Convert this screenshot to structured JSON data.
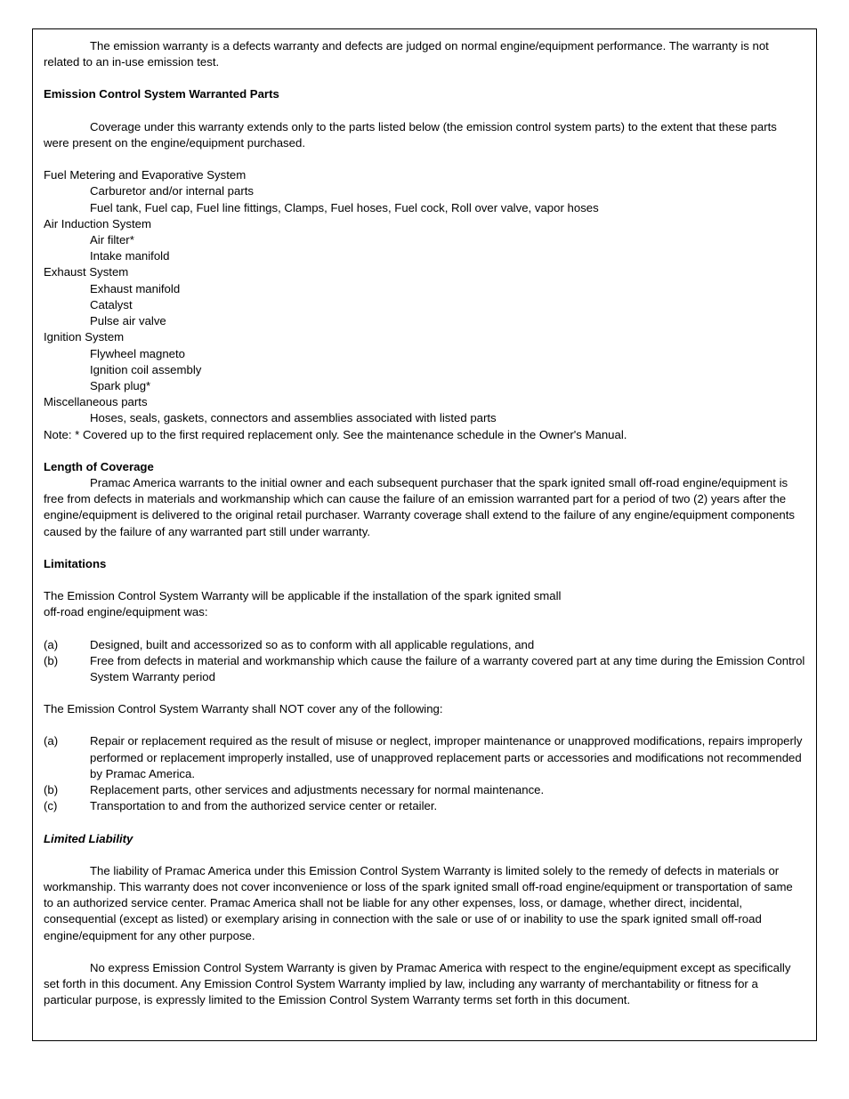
{
  "intro": "The emission warranty is a defects warranty and defects are judged on normal engine/equipment performance. The warranty is not related to an in-use emission test.",
  "parts": {
    "heading": "Emission Control System Warranted Parts",
    "intro": "Coverage under this warranty extends only to the parts listed below (the emission control system parts) to the extent that these parts were present on the engine/equipment purchased.",
    "g1_title": "Fuel Metering and Evaporative System",
    "g1_i1": "Carburetor and/or internal parts",
    "g1_i2": "Fuel tank, Fuel cap, Fuel line fittings, Clamps, Fuel hoses, Fuel cock, Roll over valve, vapor hoses",
    "g2_title": "Air Induction System",
    "g2_i1": "Air filter*",
    "g2_i2": "Intake manifold",
    "g3_title": "Exhaust System",
    "g3_i1": "Exhaust manifold",
    "g3_i2": "Catalyst",
    "g3_i3": "Pulse air valve",
    "g4_title": "Ignition System",
    "g4_i1": "Flywheel magneto",
    "g4_i2": "Ignition coil assembly",
    "g4_i3": "Spark plug*",
    "g5_title": "Miscellaneous parts",
    "g5_i1": "Hoses, seals, gaskets, connectors and assemblies associated with listed parts",
    "note": "Note: * Covered up to the first required replacement only. See the maintenance schedule in the Owner's Manual."
  },
  "coverage": {
    "heading": "Length of Coverage",
    "body": "Pramac America warrants to the initial owner and each subsequent purchaser that the spark ignited small off-road engine/equipment is free from defects in materials and workmanship which can cause the failure of an emission warranted part for a period of two (2) years after the engine/equipment is delivered to the original retail purchaser. Warranty coverage shall extend to the failure of any engine/equipment components caused by the failure of any warranted part still under warranty."
  },
  "limitations": {
    "heading": "Limitations",
    "intro1": "The Emission Control System Warranty will be applicable if the installation of the spark ignited small",
    "intro2": "off-road engine/equipment was:",
    "a1_m": "(a)",
    "a1": "Designed, built and accessorized so as to conform with all applicable regulations, and",
    "b1_m": "(b)",
    "b1": "Free from defects in material and workmanship which cause the failure of a warranty covered part at any time during the Emission Control System Warranty period",
    "mid": "The Emission Control System Warranty shall NOT cover any of the following:",
    "a2_m": "(a)",
    "a2": "Repair or replacement required as the result of misuse or neglect, improper maintenance or unapproved modifications, repairs improperly performed or replacement improperly installed, use of unapproved replacement parts or accessories and modifications not recommended by Pramac America.",
    "b2_m": "(b)",
    "b2": "Replacement parts, other services and adjustments necessary for normal maintenance.",
    "c2_m": "(c)",
    "c2": "Transportation to and from the authorized service center or retailer."
  },
  "liability": {
    "heading": "Limited Liability",
    "p1": "The liability of Pramac America under this Emission Control System Warranty is limited solely to the remedy of defects in materials or workmanship. This warranty does not cover inconvenience or loss of the spark ignited small off-road engine/equipment or transportation of same to an authorized service center. Pramac America shall not be liable for any other expenses, loss, or damage, whether direct, incidental, consequential (except as listed) or exemplary arising in connection with the sale or use of or inability to use the spark ignited small off-road engine/equipment for any other purpose.",
    "p2": "No express Emission Control System Warranty is given by Pramac America with respect to the engine/equipment except as specifically set forth in this document. Any Emission Control System Warranty implied by law, including any warranty of merchantability or fitness for a particular purpose, is expressly limited to the Emission Control System Warranty terms set forth in this document."
  }
}
